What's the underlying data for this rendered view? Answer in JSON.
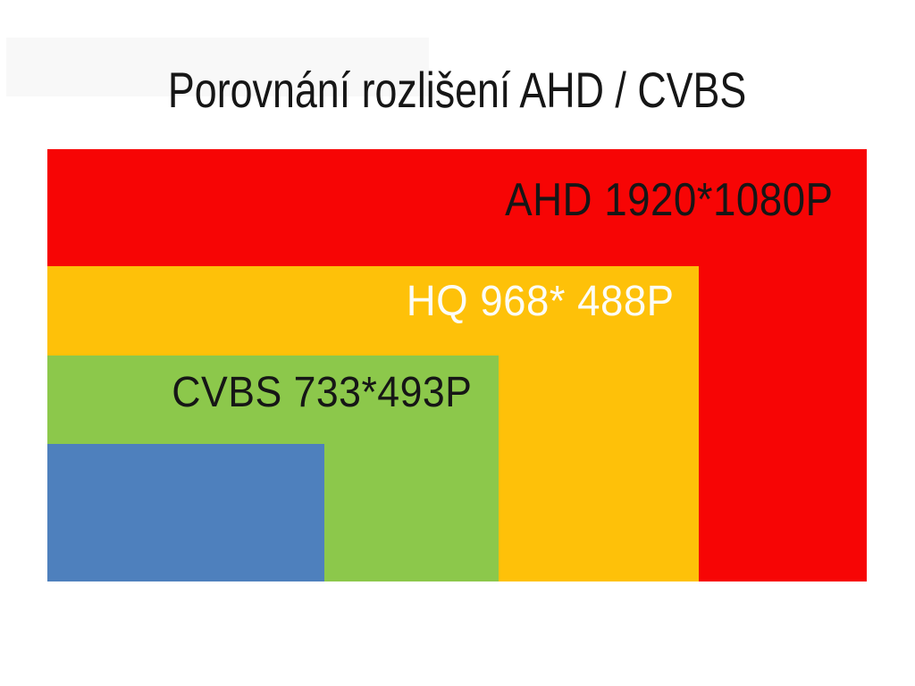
{
  "chart_data": {
    "type": "area",
    "representation": "nested-rectangles-size-comparison",
    "title": "Porovnání rozlišení AHD / CVBS",
    "title_color": "#161616",
    "background": "#FFFFFF",
    "artifact_panel_color": "#F8F8F8",
    "legend_position": "none",
    "grid": false,
    "series": [
      {
        "name": "AHD",
        "label": "AHD 1920*1080P",
        "resolution_width": 1920,
        "resolution_height": 1080,
        "color": "#F70505",
        "label_color": "#161616"
      },
      {
        "name": "HQ",
        "label": "HQ 968* 488P",
        "resolution_width": 968,
        "resolution_height": 488,
        "color": "#FEC109",
        "label_color": "#FCFCF7"
      },
      {
        "name": "CVBS",
        "label": "CVBS 733*493P",
        "resolution_width": 733,
        "resolution_height": 493,
        "color": "#8CC84B",
        "label_color": "#161616"
      },
      {
        "name": "smallest-unlabeled",
        "label": "",
        "color": "#4E80BD"
      }
    ]
  }
}
